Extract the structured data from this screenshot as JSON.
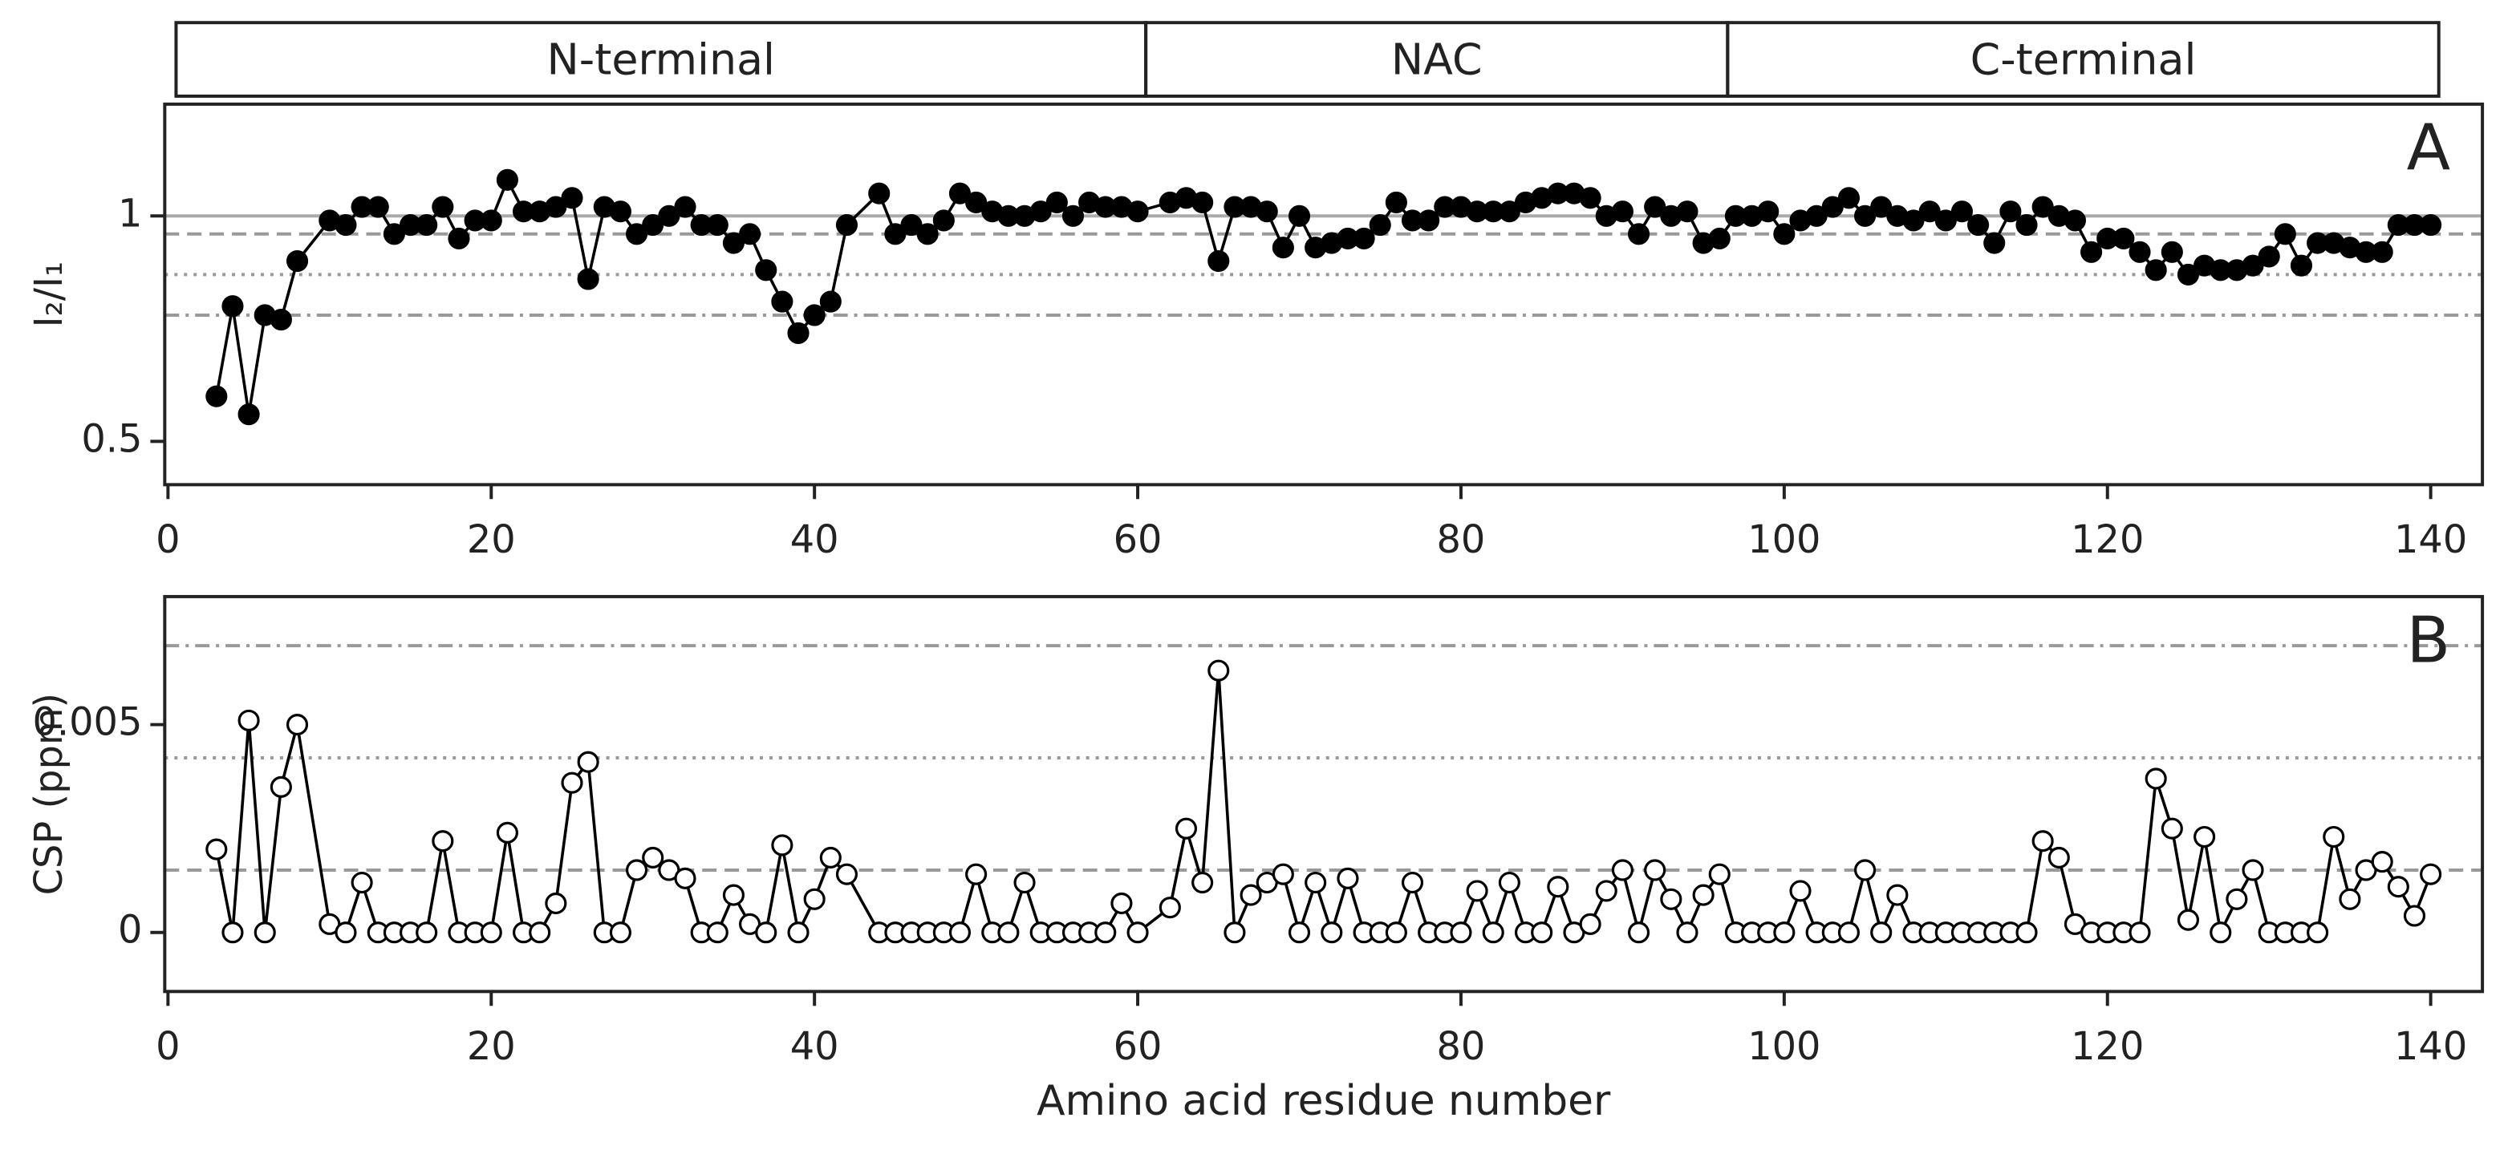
{
  "regions": [
    {
      "label": "N-terminal",
      "start": 1,
      "end": 60
    },
    {
      "label": "NAC",
      "start": 61,
      "end": 96
    },
    {
      "label": "C-terminal",
      "start": 97,
      "end": 140
    }
  ],
  "chart_data": [
    {
      "type": "line",
      "panel_label": "A",
      "ylabel": "I₂/I₁",
      "color": "#000000",
      "marker": "filled",
      "x": [
        3,
        4,
        5,
        6,
        7,
        8,
        10,
        11,
        12,
        13,
        14,
        15,
        16,
        17,
        18,
        19,
        20,
        21,
        22,
        23,
        24,
        25,
        26,
        27,
        28,
        29,
        30,
        31,
        32,
        33,
        34,
        35,
        36,
        37,
        38,
        39,
        40,
        41,
        42,
        44,
        45,
        46,
        47,
        48,
        49,
        50,
        51,
        52,
        53,
        54,
        55,
        56,
        57,
        58,
        59,
        60,
        62,
        63,
        64,
        65,
        66,
        67,
        68,
        69,
        70,
        71,
        72,
        73,
        74,
        75,
        76,
        77,
        78,
        79,
        80,
        81,
        82,
        83,
        84,
        85,
        86,
        87,
        88,
        89,
        90,
        91,
        92,
        93,
        94,
        95,
        96,
        97,
        98,
        99,
        100,
        101,
        102,
        103,
        104,
        105,
        106,
        107,
        108,
        109,
        110,
        111,
        112,
        113,
        114,
        115,
        116,
        117,
        118,
        119,
        120,
        121,
        122,
        123,
        124,
        125,
        126,
        127,
        128,
        129,
        130,
        131,
        132,
        133,
        134,
        135,
        136,
        137,
        138,
        139,
        140
      ],
      "values": [
        0.6,
        0.8,
        0.56,
        0.78,
        0.77,
        0.9,
        0.99,
        0.98,
        1.02,
        1.02,
        0.96,
        0.98,
        0.98,
        1.02,
        0.95,
        0.99,
        0.99,
        1.08,
        1.01,
        1.01,
        1.02,
        1.04,
        0.86,
        1.02,
        1.01,
        0.96,
        0.98,
        1.0,
        1.02,
        0.98,
        0.98,
        0.94,
        0.96,
        0.88,
        0.81,
        0.74,
        0.78,
        0.81,
        0.98,
        1.05,
        0.96,
        0.98,
        0.96,
        0.99,
        1.05,
        1.03,
        1.01,
        1.0,
        1.0,
        1.01,
        1.03,
        1.0,
        1.03,
        1.02,
        1.02,
        1.01,
        1.03,
        1.04,
        1.03,
        0.9,
        1.02,
        1.02,
        1.01,
        0.93,
        1.0,
        0.93,
        0.94,
        0.95,
        0.95,
        0.98,
        1.03,
        0.99,
        0.99,
        1.02,
        1.02,
        1.01,
        1.01,
        1.01,
        1.03,
        1.04,
        1.05,
        1.05,
        1.04,
        1.0,
        1.01,
        0.96,
        1.02,
        1.0,
        1.01,
        0.94,
        0.95,
        1.0,
        1.0,
        1.01,
        0.96,
        0.99,
        1.0,
        1.02,
        1.04,
        1.0,
        1.02,
        1.0,
        0.99,
        1.01,
        0.99,
        1.01,
        0.98,
        0.94,
        1.01,
        0.98,
        1.02,
        1.0,
        0.99,
        0.92,
        0.95,
        0.95,
        0.92,
        0.88,
        0.92,
        0.87,
        0.89,
        0.88,
        0.88,
        0.89,
        0.91,
        0.96,
        0.89,
        0.94,
        0.94,
        0.93,
        0.92,
        0.92,
        0.98,
        0.98,
        0.98
      ],
      "xlim": [
        -0.2,
        143.2
      ],
      "xticks": [
        0,
        20,
        40,
        60,
        80,
        100,
        120,
        140
      ],
      "ylim": [
        0.404,
        1.248
      ],
      "yticks": [
        0.5,
        1
      ],
      "hlines": [
        {
          "value": 1,
          "dash": "solid"
        },
        {
          "value": 0.96,
          "dash": "dashed"
        },
        {
          "value": 0.87,
          "dash": "dotted"
        },
        {
          "value": 0.78,
          "dash": "dashdot"
        }
      ]
    },
    {
      "type": "line",
      "panel_label": "B",
      "ylabel": "CSP (ppm)",
      "xlabel": "Amino acid residue number",
      "color": "#000000",
      "marker": "open",
      "x": [
        3,
        4,
        5,
        6,
        7,
        8,
        10,
        11,
        12,
        13,
        14,
        15,
        16,
        17,
        18,
        19,
        20,
        21,
        22,
        23,
        24,
        25,
        26,
        27,
        28,
        29,
        30,
        31,
        32,
        33,
        34,
        35,
        36,
        37,
        38,
        39,
        40,
        41,
        42,
        44,
        45,
        46,
        47,
        48,
        49,
        50,
        51,
        52,
        53,
        54,
        55,
        56,
        57,
        58,
        59,
        60,
        62,
        63,
        64,
        65,
        66,
        67,
        68,
        69,
        70,
        71,
        72,
        73,
        74,
        75,
        76,
        77,
        78,
        79,
        80,
        81,
        82,
        83,
        84,
        85,
        86,
        87,
        88,
        89,
        90,
        91,
        92,
        93,
        94,
        95,
        96,
        97,
        98,
        99,
        100,
        101,
        102,
        103,
        104,
        105,
        106,
        107,
        108,
        109,
        110,
        111,
        112,
        113,
        114,
        115,
        116,
        117,
        118,
        119,
        120,
        121,
        122,
        123,
        124,
        125,
        126,
        127,
        128,
        129,
        130,
        131,
        132,
        133,
        134,
        135,
        136,
        137,
        138,
        139,
        140
      ],
      "values": [
        0.002,
        0,
        0.0051,
        0,
        0.0035,
        0.005,
        0.0002,
        0,
        0.0012,
        0,
        0,
        0,
        0,
        0.0022,
        0,
        0,
        0,
        0.0024,
        0,
        0,
        0.0007,
        0.0036,
        0.0041,
        0,
        0,
        0.0015,
        0.0018,
        0.0015,
        0.0013,
        0,
        0,
        0.0009,
        0.0002,
        0,
        0.0021,
        0,
        0.0008,
        0.0018,
        0.0014,
        0,
        0,
        0,
        0,
        0,
        0,
        0.0014,
        0,
        0,
        0.0012,
        0,
        0,
        0,
        0,
        0,
        0.0007,
        0,
        0.0006,
        0.0025,
        0.0012,
        0.0063,
        0,
        0.0009,
        0.0012,
        0.0014,
        0,
        0.0012,
        0,
        0.0013,
        0,
        0,
        0,
        0.0012,
        0,
        0,
        0,
        0.001,
        0,
        0.0012,
        0,
        0,
        0.0011,
        0,
        0.0002,
        0.001,
        0.0015,
        0,
        0.0015,
        0.0008,
        0,
        0.0009,
        0.0014,
        0,
        0,
        0,
        0,
        0.001,
        0,
        0,
        0,
        0.0015,
        0,
        0.0009,
        0,
        0,
        0,
        0,
        0,
        0,
        0,
        0,
        0.0022,
        0.0018,
        0.0002,
        0,
        0,
        0,
        0,
        0.0037,
        0.0025,
        0.0003,
        0.0023,
        0,
        0.0008,
        0.0015,
        0,
        0,
        0,
        0,
        0.0023,
        0.0008,
        0.0015,
        0.0017,
        0.0011,
        0.0004,
        0.0014
      ],
      "xlim": [
        -0.2,
        143.2
      ],
      "xticks": [
        0,
        20,
        40,
        60,
        80,
        100,
        120,
        140
      ],
      "ylim": [
        -0.00142,
        0.00808
      ],
      "yticks": [
        0,
        0.005
      ],
      "hlines": [
        {
          "value": 0.0069,
          "dash": "dashdot"
        },
        {
          "value": 0.0042,
          "dash": "dotted"
        },
        {
          "value": 0.0015,
          "dash": "dashed"
        }
      ]
    }
  ]
}
